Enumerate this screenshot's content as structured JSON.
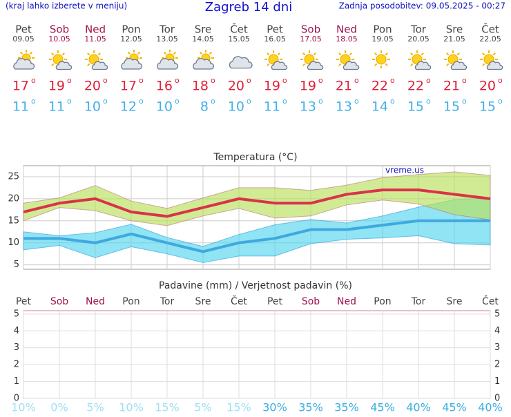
{
  "header": {
    "hint": "(kraj lahko izberete v meniju)",
    "title": "Zagreb 14 dni",
    "updated": "Zadnja posodobitev: 09.05.2025 - 00:27"
  },
  "forecast": {
    "deg": "o",
    "days": [
      {
        "name": "Pet",
        "date": "09.05",
        "color": "#444444",
        "icon": "partly-cloudy",
        "max": 17,
        "min": 11
      },
      {
        "name": "Sob",
        "date": "10.05",
        "color": "#a0104a",
        "icon": "sunny-cloudy",
        "max": 19,
        "min": 11
      },
      {
        "name": "Ned",
        "date": "11.05",
        "color": "#a0104a",
        "icon": "sunny-cloudy",
        "max": 20,
        "min": 10
      },
      {
        "name": "Pon",
        "date": "12.05",
        "color": "#444444",
        "icon": "partly-cloudy",
        "max": 17,
        "min": 12
      },
      {
        "name": "Tor",
        "date": "13.05",
        "color": "#444444",
        "icon": "partly-cloudy",
        "max": 16,
        "min": 10
      },
      {
        "name": "Sre",
        "date": "14.05",
        "color": "#444444",
        "icon": "partly-cloudy",
        "max": 18,
        "min": 8
      },
      {
        "name": "Čet",
        "date": "15.05",
        "color": "#444444",
        "icon": "cloudy",
        "max": 20,
        "min": 10
      },
      {
        "name": "Pet",
        "date": "16.05",
        "color": "#444444",
        "icon": "sunny-cloudy",
        "max": 19,
        "min": 11
      },
      {
        "name": "Sob",
        "date": "17.05",
        "color": "#a0104a",
        "icon": "sunny-cloudy",
        "max": 19,
        "min": 13
      },
      {
        "name": "Ned",
        "date": "18.05",
        "color": "#a0104a",
        "icon": "sunny-cloudy",
        "max": 21,
        "min": 13
      },
      {
        "name": "Pon",
        "date": "19.05",
        "color": "#444444",
        "icon": "sunny",
        "max": 22,
        "min": 14
      },
      {
        "name": "Tor",
        "date": "20.05",
        "color": "#444444",
        "icon": "sunny-cloudy",
        "max": 22,
        "min": 15
      },
      {
        "name": "Sre",
        "date": "21.05",
        "color": "#444444",
        "icon": "sunny-cloudy",
        "max": 21,
        "min": 15
      },
      {
        "name": "Čet",
        "date": "22.05",
        "color": "#444444",
        "icon": "sunny-cloudy",
        "max": 20,
        "min": 15
      }
    ]
  },
  "chart_data": [
    {
      "type": "line",
      "title": "Temperatura (°C)",
      "watermark": "vreme.us",
      "grid": true,
      "categories": [
        null,
        null,
        null,
        null,
        null,
        null,
        null,
        null,
        null,
        null,
        null,
        null,
        null,
        null
      ],
      "ylim": [
        4,
        27.5
      ],
      "yticks": [
        5,
        10,
        15,
        20,
        25
      ],
      "bands": [
        {
          "color": "#55d5ec",
          "upper": [
            12.5,
            11.6,
            12.3,
            14.2,
            11.2,
            9.2,
            11.9,
            14.1,
            15.3,
            14.5,
            16.1,
            18.1,
            19.8,
            20.2
          ],
          "lower": [
            8.4,
            9.4,
            6.6,
            9.1,
            7.5,
            5.5,
            7,
            7,
            9.8,
            10.8,
            11.1,
            11.6,
            9.8,
            9.5
          ]
        },
        {
          "color": "#b9e05a",
          "upper": [
            19,
            20.2,
            23,
            19.5,
            17.8,
            20.2,
            22.5,
            22.5,
            21.9,
            23.1,
            24.8,
            25.5,
            26.1,
            25.3
          ],
          "lower": [
            15,
            18,
            17.3,
            15,
            13.9,
            16.1,
            17.8,
            15.6,
            16.1,
            18.6,
            19.7,
            18.8,
            16.4,
            15.2
          ]
        }
      ],
      "series": [
        {
          "color": "#40a8e0",
          "values": [
            11,
            11,
            10,
            12,
            10,
            8,
            10,
            11,
            13,
            13,
            14,
            15,
            15,
            15
          ]
        },
        {
          "color": "#d9334a",
          "values": [
            17,
            19,
            20,
            17,
            16,
            18,
            20,
            19,
            19,
            21,
            22,
            22,
            21,
            20
          ]
        }
      ]
    },
    {
      "type": "bar",
      "title": "Padavine (mm) / Verjetnost padavin (%)",
      "grid": true,
      "categories": [
        "Pet",
        "Sob",
        "Ned",
        "Pon",
        "Tor",
        "Sre",
        "Čet",
        "Pet",
        "Sob",
        "Ned",
        "Pon",
        "Tor",
        "Sre",
        "Čet"
      ],
      "category_colors": [
        "#444444",
        "#a0104a",
        "#a0104a",
        "#444444",
        "#444444",
        "#444444",
        "#444444",
        "#444444",
        "#a0104a",
        "#a0104a",
        "#444444",
        "#444444",
        "#444444",
        "#444444"
      ],
      "ylim": [
        0,
        5.2
      ],
      "yticks": [
        0,
        1,
        2,
        3,
        4,
        5
      ],
      "series": [
        {
          "color": "#3a8fd8",
          "values": [
            0,
            0,
            0,
            0,
            0,
            0,
            0,
            0,
            0,
            0,
            0,
            0,
            0,
            0
          ]
        }
      ],
      "probability": {
        "values": [
          10,
          0,
          5,
          10,
          15,
          5,
          15,
          30,
          35,
          35,
          45,
          40,
          45,
          40
        ],
        "value_labels": [
          "10%",
          "0%",
          "5%",
          "10%",
          "15%",
          "5%",
          "15%",
          "30%",
          "35%",
          "35%",
          "45%",
          "40%",
          "45%",
          "40%"
        ]
      }
    }
  ]
}
